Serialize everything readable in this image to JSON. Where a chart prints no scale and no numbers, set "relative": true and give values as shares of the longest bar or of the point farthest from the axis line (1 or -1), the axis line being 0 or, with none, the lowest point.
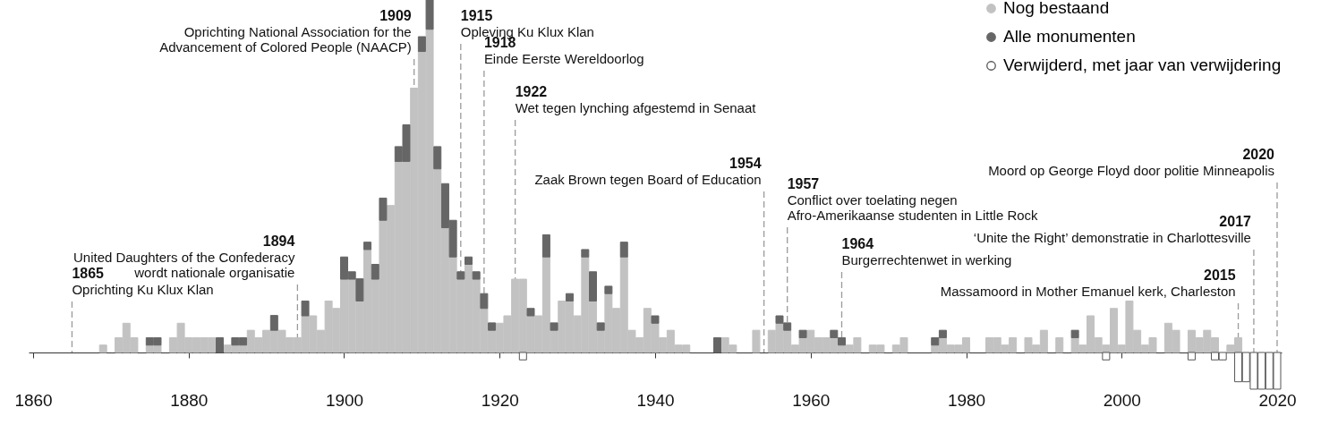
{
  "chart_data": {
    "type": "bar",
    "stacked": true,
    "relative": true,
    "legend": "top right",
    "xlim": [
      1860,
      2020
    ],
    "xticks": [
      1860,
      1880,
      1900,
      1920,
      1940,
      1960,
      1980,
      2000,
      2020
    ],
    "x": [
      1869,
      1871,
      1872,
      1873,
      1875,
      1876,
      1878,
      1879,
      1880,
      1881,
      1882,
      1883,
      1884,
      1885,
      1886,
      1887,
      1888,
      1889,
      1890,
      1891,
      1892,
      1893,
      1894,
      1895,
      1896,
      1897,
      1898,
      1899,
      1900,
      1901,
      1902,
      1903,
      1904,
      1905,
      1906,
      1907,
      1908,
      1909,
      1910,
      1911,
      1912,
      1913,
      1914,
      1915,
      1916,
      1917,
      1918,
      1919,
      1920,
      1921,
      1922,
      1923,
      1924,
      1925,
      1926,
      1927,
      1928,
      1929,
      1930,
      1931,
      1932,
      1933,
      1934,
      1935,
      1936,
      1937,
      1938,
      1939,
      1940,
      1941,
      1942,
      1943,
      1944,
      1948,
      1949,
      1950,
      1953,
      1955,
      1956,
      1957,
      1958,
      1959,
      1960,
      1961,
      1962,
      1963,
      1964,
      1965,
      1966,
      1968,
      1969,
      1971,
      1972,
      1976,
      1977,
      1978,
      1979,
      1980,
      1983,
      1984,
      1985,
      1986,
      1988,
      1989,
      1990,
      1992,
      1994,
      1995,
      1996,
      1997,
      1998,
      1999,
      2000,
      2001,
      2002,
      2003,
      2004,
      2006,
      2007,
      2009,
      2010,
      2011,
      2012,
      2013,
      2014,
      2015,
      2016,
      2017,
      2018,
      2019,
      2020
    ],
    "series": [
      {
        "name": "Nog bestaand",
        "color": "#c2c2c2",
        "values": [
          0.021,
          0.042,
          0.083,
          0.042,
          0.021,
          0.021,
          0.042,
          0.083,
          0.042,
          0.042,
          0.042,
          0.042,
          null,
          0.021,
          0.021,
          0.021,
          0.063,
          0.042,
          0.063,
          0.063,
          0.063,
          0.042,
          0.042,
          0.104,
          0.104,
          0.063,
          0.146,
          0.125,
          0.208,
          0.208,
          0.146,
          0.292,
          0.208,
          0.375,
          0.417,
          0.542,
          0.542,
          0.75,
          0.854,
          0.917,
          0.521,
          0.354,
          0.271,
          0.208,
          0.25,
          0.208,
          0.125,
          0.063,
          0.083,
          0.104,
          0.208,
          0.208,
          0.104,
          0.104,
          0.271,
          0.063,
          0.146,
          0.146,
          0.104,
          0.271,
          0.146,
          0.063,
          0.167,
          0.125,
          0.271,
          0.063,
          0.042,
          0.125,
          0.083,
          0.042,
          0.063,
          0.021,
          0.021,
          null,
          0.042,
          0.021,
          0.063,
          0.063,
          0.083,
          0.063,
          0.021,
          0.042,
          0.063,
          0.042,
          0.042,
          0.042,
          0.021,
          0.021,
          0.042,
          0.021,
          0.021,
          0.021,
          0.042,
          0.021,
          0.042,
          0.021,
          0.021,
          0.042,
          0.042,
          0.042,
          0.021,
          0.042,
          0.042,
          0.021,
          0.063,
          0.042,
          0.042,
          0.021,
          0.104,
          0.042,
          0.021,
          0.125,
          0.021,
          0.146,
          0.063,
          0.021,
          0.042,
          0.083,
          0.063,
          0.063,
          0.042,
          0.063,
          0.042,
          null,
          0.021,
          0.042,
          null,
          null,
          null,
          null,
          null
        ]
      },
      {
        "name": "Alle monumenten",
        "color": "#666666",
        "values": [
          null,
          null,
          null,
          null,
          0.021,
          0.021,
          null,
          null,
          null,
          null,
          null,
          null,
          0.042,
          null,
          0.021,
          0.021,
          null,
          null,
          null,
          0.042,
          null,
          null,
          null,
          0.042,
          null,
          null,
          null,
          null,
          0.063,
          0.021,
          0.063,
          0.021,
          0.042,
          0.063,
          null,
          0.042,
          0.104,
          null,
          0.042,
          0.083,
          0.063,
          0.125,
          0.104,
          0.021,
          0.021,
          0.021,
          0.042,
          0.021,
          null,
          null,
          null,
          null,
          0.021,
          null,
          0.063,
          0.021,
          null,
          0.021,
          null,
          0.021,
          0.083,
          0.021,
          0.021,
          null,
          0.042,
          null,
          null,
          null,
          0.021,
          null,
          null,
          null,
          null,
          0.042,
          null,
          null,
          null,
          null,
          0.021,
          0.021,
          null,
          0.021,
          null,
          null,
          null,
          0.021,
          0.021,
          null,
          null,
          null,
          null,
          null,
          null,
          0.021,
          0.021,
          null,
          null,
          null,
          null,
          null,
          null,
          null,
          null,
          null,
          null,
          null,
          0.021,
          null,
          null,
          null,
          null,
          null,
          null,
          null,
          null,
          null,
          null,
          null,
          null,
          null,
          null,
          null,
          null,
          null,
          null,
          null,
          null,
          null,
          null,
          null,
          null
        ]
      },
      {
        "name": "Verwijderd, met jaar van verwijdering",
        "color": "#555555",
        "values": [
          null,
          null,
          null,
          null,
          null,
          null,
          null,
          null,
          null,
          null,
          null,
          null,
          null,
          null,
          null,
          null,
          null,
          null,
          null,
          null,
          null,
          null,
          null,
          null,
          null,
          null,
          null,
          null,
          null,
          null,
          null,
          null,
          null,
          null,
          null,
          null,
          null,
          null,
          null,
          null,
          null,
          null,
          null,
          null,
          null,
          null,
          null,
          null,
          null,
          null,
          null,
          -0.021,
          null,
          null,
          null,
          null,
          null,
          null,
          null,
          null,
          null,
          null,
          null,
          null,
          null,
          null,
          null,
          null,
          null,
          null,
          null,
          null,
          null,
          null,
          null,
          null,
          null,
          null,
          null,
          null,
          null,
          null,
          null,
          null,
          null,
          null,
          null,
          null,
          null,
          null,
          null,
          null,
          null,
          null,
          null,
          null,
          null,
          null,
          null,
          null,
          null,
          null,
          null,
          null,
          null,
          null,
          null,
          null,
          null,
          null,
          -0.021,
          null,
          null,
          null,
          null,
          null,
          null,
          null,
          null,
          -0.021,
          null,
          null,
          -0.021,
          -0.021,
          null,
          -0.083,
          -0.083,
          -0.104,
          -0.104,
          -0.104,
          -0.104
        ]
      }
    ],
    "ref_lines": [
      {
        "axis": "x",
        "value": 1865,
        "label": "1865\nOprichting Ku Klux Klan"
      },
      {
        "axis": "x",
        "value": 1894,
        "label": "1894\nUnited Daughters of the Confederacy\nwordt nationale organisatie"
      },
      {
        "axis": "x",
        "value": 1909,
        "label": "1909\nOprichting National Association for the\nAdvancement of Colored People (NAACP)"
      },
      {
        "axis": "x",
        "value": 1915,
        "label": "1915\nOpleving Ku Klux Klan"
      },
      {
        "axis": "x",
        "value": 1918,
        "label": "1918\nEinde Eerste Wereldoorlog"
      },
      {
        "axis": "x",
        "value": 1922,
        "label": "1922\nWet tegen lynching afgestemd in Senaat"
      },
      {
        "axis": "x",
        "value": 1954,
        "label": "1954\nZaak Brown tegen Board of Education"
      },
      {
        "axis": "x",
        "value": 1957,
        "label": "1957\nConflict over toelating negen\nAfro-Amerikaanse studenten in Little Rock"
      },
      {
        "axis": "x",
        "value": 1964,
        "label": "1964\nBurgerrechtenwet in werking"
      },
      {
        "axis": "x",
        "value": 2015,
        "label": "2015\nMassamoord in Mother Emanuel kerk, Charleston"
      },
      {
        "axis": "x",
        "value": 2017,
        "label": "2017\n‘Unite the Right’ demonstratie in Charlottesville"
      },
      {
        "axis": "x",
        "value": 2020,
        "label": "2020\nMoord op George Floyd door politie Minneapolis"
      }
    ]
  }
}
